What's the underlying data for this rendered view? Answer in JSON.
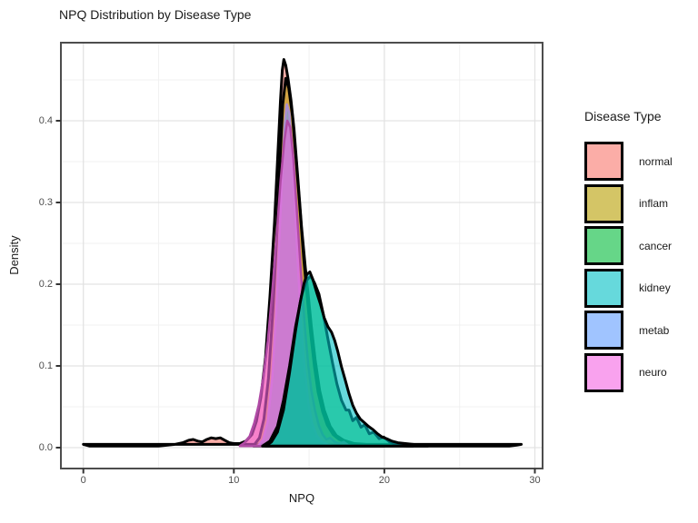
{
  "title": "NPQ Distribution by Disease Type",
  "axes": {
    "x": {
      "label": "NPQ",
      "ticks": [
        "0",
        "10",
        "20",
        "30"
      ]
    },
    "y": {
      "label": "Density",
      "ticks": [
        "0.0",
        "0.1",
        "0.2",
        "0.3",
        "0.4"
      ]
    }
  },
  "legend": {
    "title": "Disease Type"
  },
  "chart_data": {
    "type": "area",
    "subtype": "overlaid-density-curves",
    "title": "NPQ Distribution by Disease Type",
    "xlabel": "NPQ",
    "ylabel": "Density",
    "xlim": [
      -1.5,
      30.5
    ],
    "ylim": [
      -0.026,
      0.495
    ],
    "x_major_ticks": [
      0,
      10,
      20,
      30
    ],
    "x_minor_ticks": [
      5,
      15,
      25
    ],
    "y_major_ticks": [
      0,
      0.1,
      0.2,
      0.3,
      0.4
    ],
    "y_minor_ticks": [
      0.05,
      0.15,
      0.25,
      0.35,
      0.45
    ],
    "grid": "major+minor",
    "legend_position": "right",
    "legend_title": "Disease Type",
    "panel_border": "#4D4D4D",
    "grid_major": "#E3E3E3",
    "grid_minor": "#F1F1F1",
    "tick_mark_color": "#333333",
    "fill_alpha": 0.6,
    "draw_order": [
      0,
      1,
      4,
      5,
      2,
      3
    ],
    "series": [
      {
        "name": "normal",
        "fill": "#F8766D",
        "stroke": "#000000",
        "stroke_width": 3,
        "peak": {
          "x": 13.3,
          "density": 0.475
        },
        "points": [
          [
            0,
            0.004
          ],
          [
            0.4,
            0.002
          ],
          [
            1,
            0.002
          ],
          [
            2,
            0.002
          ],
          [
            3,
            0.002
          ],
          [
            4,
            0.002
          ],
          [
            5,
            0.002
          ],
          [
            5.6,
            0.003
          ],
          [
            6.1,
            0.004
          ],
          [
            6.6,
            0.006
          ],
          [
            7,
            0.009
          ],
          [
            7.3,
            0.01
          ],
          [
            7.6,
            0.008
          ],
          [
            7.9,
            0.007
          ],
          [
            8.2,
            0.01
          ],
          [
            8.5,
            0.012
          ],
          [
            8.8,
            0.011
          ],
          [
            9.1,
            0.012
          ],
          [
            9.4,
            0.009
          ],
          [
            9.7,
            0.006
          ],
          [
            10,
            0.005
          ],
          [
            10.4,
            0.005
          ],
          [
            10.8,
            0.008
          ],
          [
            11.2,
            0.016
          ],
          [
            11.5,
            0.032
          ],
          [
            11.8,
            0.062
          ],
          [
            12.1,
            0.11
          ],
          [
            12.4,
            0.185
          ],
          [
            12.7,
            0.275
          ],
          [
            12.9,
            0.35
          ],
          [
            13.1,
            0.425
          ],
          [
            13.22,
            0.462
          ],
          [
            13.32,
            0.475
          ],
          [
            13.45,
            0.468
          ],
          [
            13.6,
            0.452
          ],
          [
            13.8,
            0.425
          ],
          [
            14,
            0.39
          ],
          [
            14.25,
            0.33
          ],
          [
            14.5,
            0.27
          ],
          [
            14.75,
            0.22
          ],
          [
            14.95,
            0.185
          ],
          [
            15.15,
            0.148
          ],
          [
            15.4,
            0.108
          ],
          [
            15.7,
            0.07
          ],
          [
            16,
            0.046
          ],
          [
            16.4,
            0.026
          ],
          [
            16.8,
            0.015
          ],
          [
            17.3,
            0.009
          ],
          [
            18,
            0.005
          ],
          [
            18.8,
            0.004
          ],
          [
            19.6,
            0.003
          ],
          [
            20.5,
            0.003
          ],
          [
            21.5,
            0.002
          ],
          [
            22.5,
            0.002
          ],
          [
            23.5,
            0.002
          ],
          [
            24.5,
            0.002
          ],
          [
            25.5,
            0.002
          ],
          [
            26.5,
            0.002
          ],
          [
            27.5,
            0.002
          ],
          [
            28.3,
            0.002
          ],
          [
            28.8,
            0.003
          ],
          [
            29.1,
            0.004
          ]
        ]
      },
      {
        "name": "inflam",
        "fill": "#B79F00",
        "stroke": "#000000",
        "stroke_width": 3,
        "peak": {
          "x": 13.45,
          "density": 0.452
        },
        "points": [
          [
            11.3,
            0.002
          ],
          [
            11.7,
            0.012
          ],
          [
            12,
            0.035
          ],
          [
            12.3,
            0.085
          ],
          [
            12.6,
            0.17
          ],
          [
            12.85,
            0.26
          ],
          [
            13.05,
            0.345
          ],
          [
            13.25,
            0.42
          ],
          [
            13.45,
            0.452
          ],
          [
            13.65,
            0.44
          ],
          [
            13.9,
            0.405
          ],
          [
            14.15,
            0.35
          ],
          [
            14.4,
            0.29
          ],
          [
            14.65,
            0.23
          ],
          [
            14.9,
            0.18
          ],
          [
            15.1,
            0.14
          ],
          [
            15.35,
            0.1
          ],
          [
            15.6,
            0.068
          ],
          [
            15.9,
            0.044
          ],
          [
            16.2,
            0.028
          ],
          [
            16.6,
            0.016
          ],
          [
            17,
            0.01
          ],
          [
            17.6,
            0.006
          ],
          [
            18.4,
            0.003
          ],
          [
            19.2,
            0.002
          ],
          [
            20,
            0.002
          ]
        ]
      },
      {
        "name": "cancer",
        "fill": "#00BA38",
        "stroke": "#000000",
        "stroke_width": 3,
        "peak": {
          "x": 15.1,
          "density": 0.21
        },
        "points": [
          [
            11.9,
            0.002
          ],
          [
            12.4,
            0.008
          ],
          [
            12.9,
            0.026
          ],
          [
            13.3,
            0.058
          ],
          [
            13.7,
            0.1
          ],
          [
            14.1,
            0.148
          ],
          [
            14.5,
            0.186
          ],
          [
            14.85,
            0.205
          ],
          [
            15.1,
            0.21
          ],
          [
            15.35,
            0.202
          ],
          [
            15.65,
            0.188
          ],
          [
            15.95,
            0.163
          ],
          [
            16.25,
            0.133
          ],
          [
            16.55,
            0.104
          ],
          [
            16.85,
            0.078
          ],
          [
            17.15,
            0.058
          ],
          [
            17.45,
            0.046
          ],
          [
            17.65,
            0.046
          ],
          [
            17.9,
            0.033
          ],
          [
            18.15,
            0.037
          ],
          [
            18.45,
            0.025
          ],
          [
            18.7,
            0.028
          ],
          [
            19,
            0.017
          ],
          [
            19.3,
            0.019
          ],
          [
            19.65,
            0.011
          ],
          [
            19.95,
            0.013
          ],
          [
            20.35,
            0.007
          ],
          [
            20.8,
            0.004
          ],
          [
            21.4,
            0.003
          ],
          [
            21.9,
            0.002
          ]
        ]
      },
      {
        "name": "kidney",
        "fill": "#00BFC4",
        "stroke": "#000000",
        "stroke_width": 3,
        "peak": {
          "x": 15.05,
          "density": 0.215
        },
        "points": [
          [
            12.1,
            0.002
          ],
          [
            12.5,
            0.007
          ],
          [
            12.9,
            0.019
          ],
          [
            13.3,
            0.046
          ],
          [
            13.7,
            0.092
          ],
          [
            14.1,
            0.143
          ],
          [
            14.4,
            0.177
          ],
          [
            14.65,
            0.2
          ],
          [
            14.85,
            0.212
          ],
          [
            15.05,
            0.215
          ],
          [
            15.25,
            0.206
          ],
          [
            15.5,
            0.19
          ],
          [
            15.75,
            0.176
          ],
          [
            16,
            0.159
          ],
          [
            16.25,
            0.148
          ],
          [
            16.5,
            0.141
          ],
          [
            16.7,
            0.131
          ],
          [
            16.9,
            0.118
          ],
          [
            17.15,
            0.099
          ],
          [
            17.4,
            0.083
          ],
          [
            17.65,
            0.066
          ],
          [
            17.9,
            0.052
          ],
          [
            18.15,
            0.042
          ],
          [
            18.4,
            0.035
          ],
          [
            18.65,
            0.031
          ],
          [
            18.95,
            0.026
          ],
          [
            19.25,
            0.022
          ],
          [
            19.55,
            0.017
          ],
          [
            19.85,
            0.013
          ],
          [
            20.15,
            0.011
          ],
          [
            20.5,
            0.008
          ],
          [
            20.9,
            0.006
          ],
          [
            21.4,
            0.005
          ],
          [
            21.9,
            0.004
          ],
          [
            22.4,
            0.003
          ],
          [
            22.9,
            0.002
          ]
        ]
      },
      {
        "name": "metab",
        "fill": "#619CFF",
        "stroke": "#A98FD0",
        "stroke_width": 2.5,
        "peak": {
          "x": 13.52,
          "density": 0.42
        },
        "points": [
          [
            11.6,
            0.002
          ],
          [
            11.95,
            0.01
          ],
          [
            12.25,
            0.032
          ],
          [
            12.55,
            0.085
          ],
          [
            12.8,
            0.16
          ],
          [
            13,
            0.245
          ],
          [
            13.2,
            0.33
          ],
          [
            13.38,
            0.395
          ],
          [
            13.52,
            0.42
          ],
          [
            13.68,
            0.41
          ],
          [
            13.85,
            0.37
          ],
          [
            14.05,
            0.3
          ],
          [
            14.25,
            0.225
          ],
          [
            14.45,
            0.158
          ],
          [
            14.7,
            0.096
          ],
          [
            14.95,
            0.054
          ],
          [
            15.2,
            0.03
          ],
          [
            15.5,
            0.015
          ],
          [
            15.8,
            0.008
          ],
          [
            16.2,
            0.004
          ],
          [
            16.6,
            0.002
          ]
        ]
      },
      {
        "name": "neuro",
        "fill": "#F564E3",
        "stroke": "#B04AA5",
        "stroke_width": 2.5,
        "peak": {
          "x": 13.55,
          "density": 0.4
        },
        "points": [
          [
            10.4,
            0.002
          ],
          [
            10.7,
            0.006
          ],
          [
            11.05,
            0.014
          ],
          [
            11.35,
            0.03
          ],
          [
            11.65,
            0.052
          ],
          [
            11.95,
            0.085
          ],
          [
            12.25,
            0.13
          ],
          [
            12.55,
            0.19
          ],
          [
            12.85,
            0.26
          ],
          [
            13.1,
            0.325
          ],
          [
            13.35,
            0.375
          ],
          [
            13.55,
            0.4
          ],
          [
            13.75,
            0.392
          ],
          [
            13.95,
            0.355
          ],
          [
            14.15,
            0.3
          ],
          [
            14.35,
            0.245
          ],
          [
            14.55,
            0.19
          ],
          [
            14.75,
            0.14
          ],
          [
            14.95,
            0.1
          ],
          [
            15.15,
            0.07
          ],
          [
            15.4,
            0.045
          ],
          [
            15.65,
            0.027
          ],
          [
            15.9,
            0.016
          ],
          [
            16.15,
            0.01
          ],
          [
            16.4,
            0.012
          ],
          [
            16.7,
            0.007
          ],
          [
            17,
            0.005
          ],
          [
            17.3,
            0.007
          ],
          [
            17.6,
            0.003
          ],
          [
            18,
            0.002
          ]
        ]
      }
    ]
  }
}
